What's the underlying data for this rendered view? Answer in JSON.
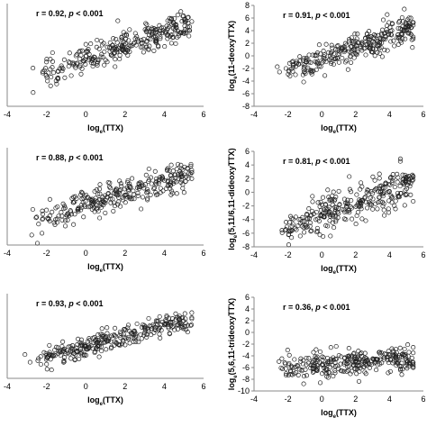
{
  "chart_data": [
    {
      "type": "scatter",
      "id": "p1",
      "annotation": {
        "prefix": "r = 0.92, ",
        "p_italic": "p",
        "suffix": " < 0.001"
      },
      "xlabel": "log",
      "xlabel_sub": "e",
      "xlabel_rest": "(TTX)",
      "ylabel": "",
      "ylabel_sub": "",
      "ylabel_rest": "",
      "xlim": [
        -4,
        6
      ],
      "ylim": [
        -8,
        8
      ],
      "xticks": [
        "-4",
        "-2",
        "0",
        "2",
        "4",
        "6"
      ],
      "yticks": [],
      "trend": {
        "slope": 1.0,
        "intercept": -0.5,
        "noise": 1.1,
        "xmin": -3.7,
        "xmax": 5.3,
        "n": 300
      }
    },
    {
      "type": "scatter",
      "id": "p2",
      "annotation": {
        "prefix": "r = 0.91, ",
        "p_italic": "p",
        "suffix": " < 0.001"
      },
      "xlabel": "log",
      "xlabel_sub": "e",
      "xlabel_rest": "(TTX)",
      "ylabel": "log",
      "ylabel_sub": "e",
      "ylabel_rest": "(11-deoxyTTX)",
      "xlim": [
        -4,
        6
      ],
      "ylim": [
        -8,
        8
      ],
      "xticks": [
        "-4",
        "-2",
        "0",
        "2",
        "4",
        "6"
      ],
      "yticks": [
        "-8",
        "-6",
        "-4",
        "-2",
        "0",
        "2",
        "4",
        "6",
        "8"
      ],
      "trend": {
        "slope": 0.95,
        "intercept": -0.5,
        "noise": 1.1,
        "xmin": -3.5,
        "xmax": 5.3,
        "n": 300
      }
    },
    {
      "type": "scatter",
      "id": "p3",
      "annotation": {
        "prefix": "r = 0.88, ",
        "p_italic": "p",
        "suffix": " < 0.001"
      },
      "xlabel": "log",
      "xlabel_sub": "e",
      "xlabel_rest": "(TTX)",
      "ylabel": "",
      "ylabel_sub": "",
      "ylabel_rest": "",
      "xlim": [
        -4,
        6
      ],
      "ylim": [
        -8,
        8
      ],
      "xticks": [
        "-4",
        "-2",
        "0",
        "2",
        "4",
        "6"
      ],
      "yticks": [],
      "trend": {
        "slope": 1.0,
        "intercept": -1.5,
        "noise": 1.2,
        "xmin": -3.8,
        "xmax": 5.3,
        "n": 300
      }
    },
    {
      "type": "scatter",
      "id": "p4",
      "annotation": {
        "prefix": "r = 0.81, ",
        "p_italic": "p",
        "suffix": " < 0.001"
      },
      "xlabel": "log",
      "xlabel_sub": "e",
      "xlabel_rest": "(TTX)",
      "ylabel": "log",
      "ylabel_sub": "e",
      "ylabel_rest": "(5,11/6,11-dideoxyTTX)",
      "xlim": [
        -4,
        6
      ],
      "ylim": [
        -8,
        6
      ],
      "xticks": [
        "-4",
        "-2",
        "0",
        "2",
        "4",
        "6"
      ],
      "yticks": [
        "-8",
        "-6",
        "-4",
        "-2",
        "0",
        "2",
        "4",
        "6"
      ],
      "trend": {
        "slope": 0.9,
        "intercept": -3.5,
        "noise": 1.3,
        "xmin": -3.6,
        "xmax": 5.3,
        "n": 300
      }
    },
    {
      "type": "scatter",
      "id": "p5",
      "annotation": {
        "prefix": "r = 0.93, ",
        "p_italic": "p",
        "suffix": " < 0.001"
      },
      "xlabel": "log",
      "xlabel_sub": "e",
      "xlabel_rest": "(TTX)",
      "ylabel": "",
      "ylabel_sub": "",
      "ylabel_rest": "",
      "xlim": [
        -4,
        6
      ],
      "ylim": [
        -8,
        8
      ],
      "xticks": [
        "-4",
        "-2",
        "0",
        "2",
        "4",
        "6"
      ],
      "yticks": [],
      "trend": {
        "slope": 1.0,
        "intercept": -2.0,
        "noise": 1.0,
        "xmin": -3.8,
        "xmax": 5.3,
        "n": 300
      }
    },
    {
      "type": "scatter",
      "id": "p6",
      "annotation": {
        "prefix": "r = 0.36, ",
        "p_italic": "p",
        "suffix": " < 0.001"
      },
      "xlabel": "log",
      "xlabel_sub": "e",
      "xlabel_rest": "(TTX)",
      "ylabel": "log",
      "ylabel_sub": "e",
      "ylabel_rest": "(5,6,11-trideoxyTTX)",
      "xlim": [
        -4,
        6
      ],
      "ylim": [
        -10,
        6
      ],
      "xticks": [
        "-4",
        "-2",
        "0",
        "2",
        "4",
        "6"
      ],
      "yticks": [
        "-10",
        "-8",
        "-6",
        "-4",
        "-2",
        "0",
        "2",
        "4",
        "6"
      ],
      "trend": {
        "slope": 0.25,
        "intercept": -5.6,
        "noise": 1.1,
        "xmin": -3.6,
        "xmax": 5.3,
        "n": 300
      }
    }
  ]
}
